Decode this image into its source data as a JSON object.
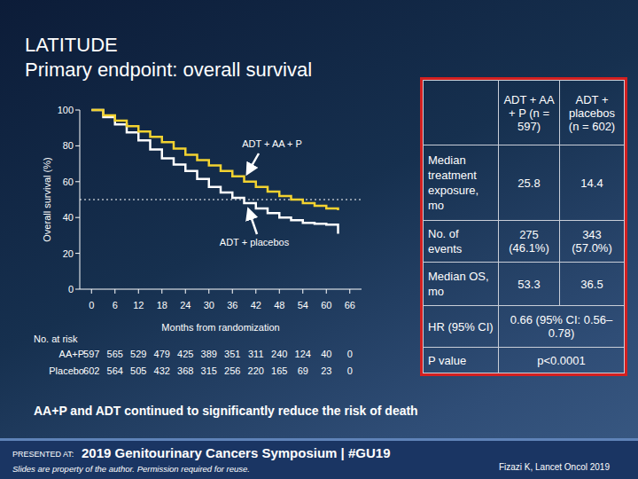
{
  "slide": {
    "title": "LATITUDE",
    "subtitle": "Primary endpoint: overall survival",
    "takeaway": "AA+P and ADT continued to significantly reduce the risk of death",
    "conference": {
      "label": "PRESENTED AT:",
      "name": "2019 Genitourinary Cancers Symposium | #GU19",
      "note": "Slides are property of the author. Permission required for reuse."
    },
    "citation": "Fizazi K, Lancet Oncol 2019"
  },
  "chart_data": {
    "type": "line",
    "line_style": "step",
    "grid": false,
    "x_label": "Months from randomization",
    "y_label": "Overall survival (%)",
    "xlim": [
      -3,
      69
    ],
    "ylim": [
      0,
      100
    ],
    "xticks": [
      0,
      6,
      12,
      18,
      24,
      30,
      36,
      42,
      48,
      54,
      60,
      66
    ],
    "yticks": [
      0,
      20,
      40,
      60,
      80,
      100
    ],
    "median_line": 50,
    "x": [
      0,
      3,
      6,
      9,
      12,
      15,
      18,
      21,
      24,
      27,
      30,
      33,
      36,
      39,
      42,
      45,
      48,
      51,
      54,
      57,
      60,
      63
    ],
    "series": [
      {
        "name": "ADT + AA + P",
        "color": "#f2d230",
        "values": [
          100,
          97,
          94,
          91,
          88,
          85,
          82,
          78.5,
          75,
          72,
          69,
          66,
          63,
          60,
          57,
          54.5,
          52,
          50,
          48,
          46.5,
          45,
          44
        ]
      },
      {
        "name": "ADT + placebos",
        "color": "#ffffff",
        "values": [
          100,
          96,
          92,
          87.5,
          83,
          78,
          73,
          69.5,
          66,
          61.5,
          57,
          54,
          51,
          48,
          45,
          42.5,
          40,
          38.5,
          37,
          36.5,
          36,
          31
        ]
      }
    ],
    "at_risk": {
      "title": "No. at risk",
      "months": [
        0,
        6,
        12,
        18,
        24,
        30,
        36,
        42,
        48,
        54,
        60,
        66
      ],
      "rows": [
        {
          "name": "AA+P",
          "values": [
            597,
            565,
            529,
            479,
            425,
            389,
            351,
            311,
            240,
            124,
            40,
            0
          ]
        },
        {
          "name": "Placebo",
          "values": [
            602,
            564,
            505,
            432,
            368,
            315,
            256,
            220,
            165,
            69,
            23,
            0
          ]
        }
      ]
    }
  },
  "table": {
    "columns": [
      "ADT + AA + P (n = 597)",
      "ADT + placebos (n = 602)"
    ],
    "rows": [
      {
        "label": "Median treatment exposure, mo",
        "values": [
          25.8,
          14.4
        ]
      },
      {
        "label": "No. of events",
        "values": [
          "275 (46.1%)",
          "343 (57.0%)"
        ]
      },
      {
        "label": "Median OS, mo",
        "values": [
          53.3,
          36.5
        ]
      },
      {
        "label": "HR (95% CI)",
        "values": [
          "0.66 (95% CI: 0.56–0.78)"
        ]
      },
      {
        "label": "P value",
        "values": [
          "p<0.0001"
        ]
      }
    ]
  }
}
